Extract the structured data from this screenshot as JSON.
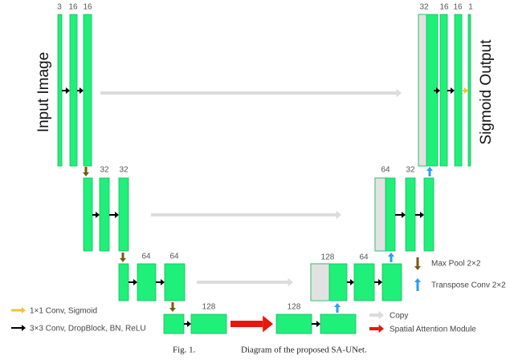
{
  "title": {
    "input": "Input Image",
    "output": "Sigmoid Output"
  },
  "channel_labels": [
    3,
    16,
    16,
    32,
    32,
    64,
    64,
    128,
    128,
    128,
    64,
    64,
    32,
    32,
    16,
    16,
    1
  ],
  "legend": [
    "1×1 Conv, Sigmoid",
    "3×3 Conv, DropBlock, BN, ReLU",
    "Max Pool 2×2",
    "Transpose Conv 2×2",
    "Copy",
    "Spatial Attention Module"
  ],
  "caption": {
    "label": "Fig. 1.",
    "text": "Diagram of the proposed SA-UNet."
  }
}
